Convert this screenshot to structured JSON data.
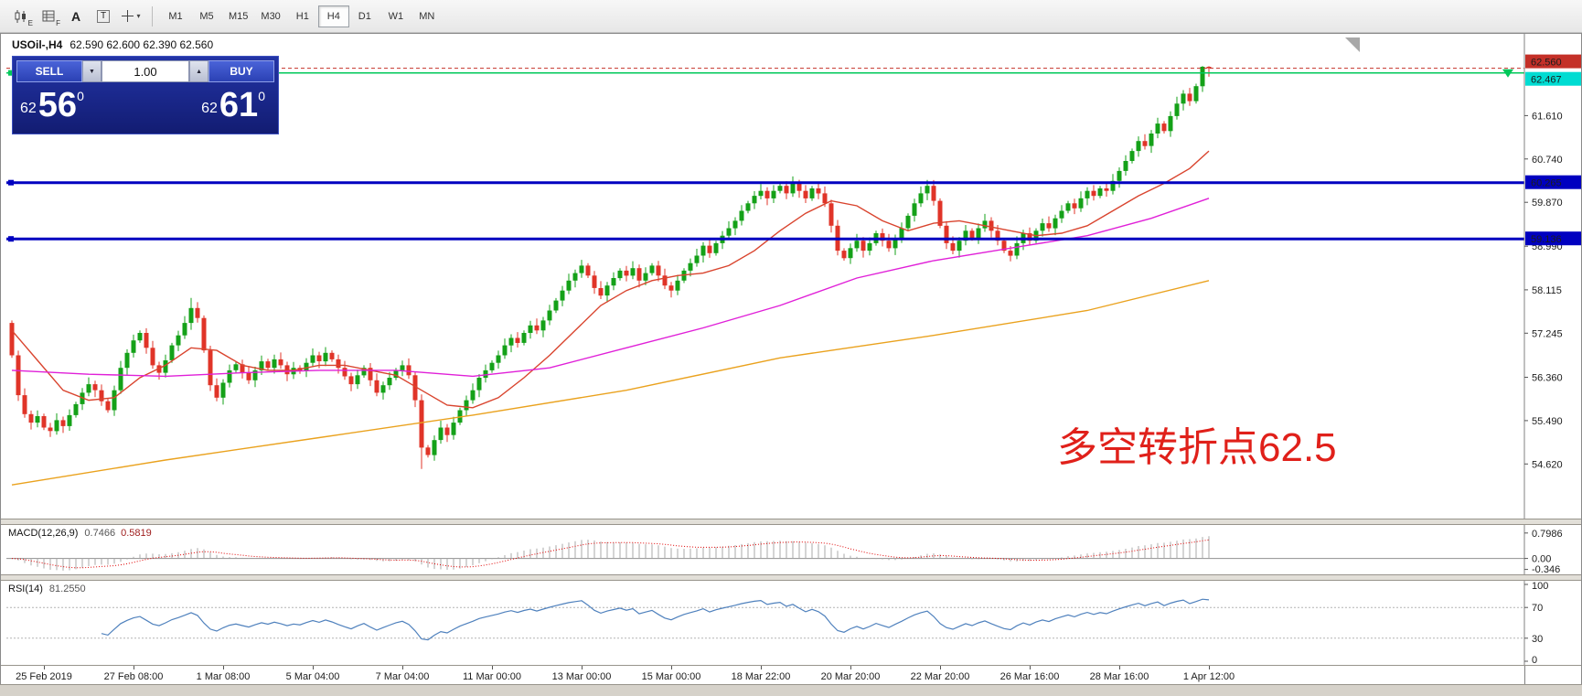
{
  "colors": {
    "bull": "#14a118",
    "bear": "#e03428",
    "ma_fast": "#d9442e",
    "ma_mid": "#e020d8",
    "ma_slow": "#eaa21e",
    "hline_green": "#00c85a",
    "hline_blue": "#0000c0",
    "badge_cyan": "#00dcd2",
    "badge_red": "#c43028",
    "badge_blue": "#0000c0",
    "rsi_line": "#4f81bd",
    "macd_bar": "#a8a8a8",
    "macd_signal": "#e00000",
    "trade_panel_bg": "#1b2b9c",
    "annotation_red": "#e0201a"
  },
  "toolbar": {
    "icons": [
      {
        "name": "candlestick-chart-icon",
        "sub": "E"
      },
      {
        "name": "indicator-grid-icon",
        "sub": "F"
      },
      {
        "name": "text-label-icon",
        "glyph": "A"
      },
      {
        "name": "text-box-icon",
        "glyph": "T"
      },
      {
        "name": "crosshair-icon",
        "caret": "▾"
      }
    ],
    "timeframes": [
      "M1",
      "M5",
      "M15",
      "M30",
      "H1",
      "H4",
      "D1",
      "W1",
      "MN"
    ],
    "active_timeframe": "H4"
  },
  "chart": {
    "symbol_label": "USOil-,H4",
    "ohlc_label": "62.590 62.600 62.390 62.560",
    "annotation": "多空转折点62.5",
    "current_price": 62.56,
    "price_axis": {
      "ticks": [
        "61.610",
        "60.740",
        "59.870",
        "58.990",
        "58.115",
        "57.245",
        "56.360",
        "55.490",
        "54.620"
      ],
      "badges": [
        {
          "label": "62.560",
          "price": 62.56,
          "type": "bid"
        },
        {
          "label": "62.467",
          "price": 62.467,
          "type": "line-green"
        },
        {
          "label": "60.265",
          "price": 60.265,
          "type": "line-blue"
        },
        {
          "label": "59.136",
          "price": 59.136,
          "type": "line-blue"
        }
      ]
    },
    "hlines": [
      {
        "price": 62.467,
        "color_key": "hline_green",
        "width": 1.5
      },
      {
        "price": 60.265,
        "color_key": "hline_blue",
        "width": 3
      },
      {
        "price": 59.136,
        "color_key": "hline_blue",
        "width": 3
      }
    ]
  },
  "trade_panel": {
    "sell_label": "SELL",
    "buy_label": "BUY",
    "volume": "1.00",
    "down_glyph": "▼",
    "up_glyph": "▲",
    "sell_price": {
      "prefix": "62",
      "big": "56",
      "sup": "0"
    },
    "buy_price": {
      "prefix": "62",
      "big": "61",
      "sup": "0"
    }
  },
  "macd": {
    "name": "MACD(12,26,9)",
    "value_main": "0.7466",
    "value_signal": "0.5819",
    "axis": [
      {
        "label": "0.7986",
        "value": 0.7986
      },
      {
        "label": "0.00",
        "value": 0
      },
      {
        "label": "-0.346",
        "value": -0.346
      }
    ]
  },
  "rsi": {
    "name": "RSI(14)",
    "value": "81.2550",
    "axis": [
      {
        "label": "100",
        "value": 100
      },
      {
        "label": "70",
        "value": 70
      },
      {
        "label": "30",
        "value": 30
      },
      {
        "label": "0",
        "value": 0
      }
    ],
    "levels": [
      70,
      30
    ]
  },
  "time_axis": {
    "labels": [
      "25 Feb 2019",
      "27 Feb 08:00",
      "1 Mar 08:00",
      "5 Mar 04:00",
      "7 Mar 04:00",
      "11 Mar 00:00",
      "13 Mar 00:00",
      "15 Mar 00:00",
      "18 Mar 22:00",
      "20 Mar 20:00",
      "22 Mar 20:00",
      "26 Mar 16:00",
      "28 Mar 16:00",
      "1 Apr 12:00"
    ],
    "tick_candle_indices": [
      5,
      19,
      33,
      47,
      61,
      75,
      89,
      103,
      117,
      131,
      145,
      159,
      173,
      187
    ]
  },
  "chart_data": {
    "type": "candlestick",
    "symbol": "USOil",
    "timeframe": "H4",
    "price_range": [
      53.5,
      63.25
    ],
    "first_open": 57.45,
    "closes": [
      56.8,
      56.0,
      55.62,
      55.45,
      55.58,
      55.35,
      55.28,
      55.5,
      55.38,
      55.6,
      55.82,
      56.05,
      56.22,
      56.1,
      55.88,
      55.7,
      56.1,
      56.55,
      56.85,
      57.1,
      57.25,
      56.95,
      56.6,
      56.45,
      56.7,
      57.0,
      57.2,
      57.45,
      57.75,
      57.55,
      56.9,
      56.2,
      55.95,
      56.25,
      56.5,
      56.62,
      56.45,
      56.3,
      56.5,
      56.68,
      56.55,
      56.72,
      56.6,
      56.42,
      56.55,
      56.48,
      56.65,
      56.8,
      56.68,
      56.85,
      56.72,
      56.55,
      56.38,
      56.22,
      56.4,
      56.55,
      56.3,
      56.05,
      56.2,
      56.35,
      56.5,
      56.6,
      56.4,
      55.9,
      54.95,
      54.8,
      55.1,
      55.35,
      55.2,
      55.45,
      55.7,
      55.9,
      56.1,
      56.35,
      56.5,
      56.65,
      56.8,
      57.0,
      57.15,
      57.05,
      57.25,
      57.4,
      57.3,
      57.5,
      57.7,
      57.9,
      58.1,
      58.3,
      58.45,
      58.6,
      58.4,
      58.15,
      58.0,
      58.2,
      58.35,
      58.5,
      58.4,
      58.55,
      58.3,
      58.45,
      58.6,
      58.4,
      58.2,
      58.1,
      58.3,
      58.5,
      58.65,
      58.8,
      59.0,
      58.85,
      59.05,
      59.2,
      59.35,
      59.5,
      59.7,
      59.85,
      60.0,
      60.1,
      59.95,
      60.1,
      60.2,
      60.05,
      60.25,
      60.1,
      59.95,
      60.15,
      60.05,
      59.85,
      59.4,
      58.9,
      58.75,
      58.95,
      59.1,
      58.9,
      59.05,
      59.25,
      59.1,
      58.95,
      59.15,
      59.35,
      59.6,
      59.85,
      60.05,
      60.2,
      59.9,
      59.4,
      59.05,
      58.9,
      59.1,
      59.3,
      59.15,
      59.35,
      59.5,
      59.3,
      59.1,
      58.9,
      58.8,
      59.05,
      59.25,
      59.1,
      59.3,
      59.45,
      59.35,
      59.55,
      59.7,
      59.85,
      59.75,
      59.95,
      60.1,
      60.0,
      60.15,
      60.1,
      60.3,
      60.5,
      60.7,
      60.9,
      61.1,
      61.0,
      61.25,
      61.45,
      61.3,
      61.6,
      61.85,
      62.05,
      61.9,
      62.2,
      62.59,
      62.56
    ],
    "wick_overrides": {
      "28": [
        57.95,
        null
      ],
      "64": [
        null,
        54.52
      ],
      "122": [
        60.39,
        null
      ],
      "143": [
        60.32,
        null
      ],
      "186": [
        62.605,
        null
      ],
      "187": [
        62.6,
        62.39
      ]
    },
    "ma_fast_points": [
      [
        0,
        57.3
      ],
      [
        4,
        56.7
      ],
      [
        8,
        56.1
      ],
      [
        12,
        55.9
      ],
      [
        16,
        55.95
      ],
      [
        20,
        56.35
      ],
      [
        24,
        56.6
      ],
      [
        28,
        56.95
      ],
      [
        32,
        56.9
      ],
      [
        36,
        56.6
      ],
      [
        40,
        56.5
      ],
      [
        44,
        56.5
      ],
      [
        48,
        56.6
      ],
      [
        52,
        56.6
      ],
      [
        56,
        56.5
      ],
      [
        60,
        56.4
      ],
      [
        64,
        56.1
      ],
      [
        68,
        55.8
      ],
      [
        72,
        55.75
      ],
      [
        76,
        55.95
      ],
      [
        80,
        56.35
      ],
      [
        84,
        56.8
      ],
      [
        88,
        57.3
      ],
      [
        92,
        57.8
      ],
      [
        96,
        58.1
      ],
      [
        100,
        58.3
      ],
      [
        104,
        58.4
      ],
      [
        108,
        58.45
      ],
      [
        112,
        58.6
      ],
      [
        116,
        58.9
      ],
      [
        120,
        59.3
      ],
      [
        124,
        59.65
      ],
      [
        128,
        59.9
      ],
      [
        132,
        59.8
      ],
      [
        136,
        59.5
      ],
      [
        140,
        59.3
      ],
      [
        144,
        59.45
      ],
      [
        148,
        59.5
      ],
      [
        152,
        59.4
      ],
      [
        156,
        59.3
      ],
      [
        160,
        59.2
      ],
      [
        164,
        59.25
      ],
      [
        168,
        59.4
      ],
      [
        172,
        59.7
      ],
      [
        176,
        60.0
      ],
      [
        180,
        60.25
      ],
      [
        184,
        60.55
      ],
      [
        187,
        60.9
      ]
    ],
    "ma_mid_points": [
      [
        0,
        56.5
      ],
      [
        12,
        56.42
      ],
      [
        24,
        56.38
      ],
      [
        36,
        56.45
      ],
      [
        48,
        56.5
      ],
      [
        60,
        56.5
      ],
      [
        72,
        56.38
      ],
      [
        84,
        56.55
      ],
      [
        96,
        56.95
      ],
      [
        108,
        57.35
      ],
      [
        120,
        57.8
      ],
      [
        132,
        58.35
      ],
      [
        144,
        58.7
      ],
      [
        156,
        58.95
      ],
      [
        168,
        59.2
      ],
      [
        178,
        59.55
      ],
      [
        187,
        59.95
      ]
    ],
    "ma_slow_points": [
      [
        0,
        54.2
      ],
      [
        24,
        54.7
      ],
      [
        48,
        55.15
      ],
      [
        72,
        55.6
      ],
      [
        96,
        56.1
      ],
      [
        120,
        56.75
      ],
      [
        144,
        57.2
      ],
      [
        168,
        57.7
      ],
      [
        187,
        58.3
      ]
    ]
  }
}
